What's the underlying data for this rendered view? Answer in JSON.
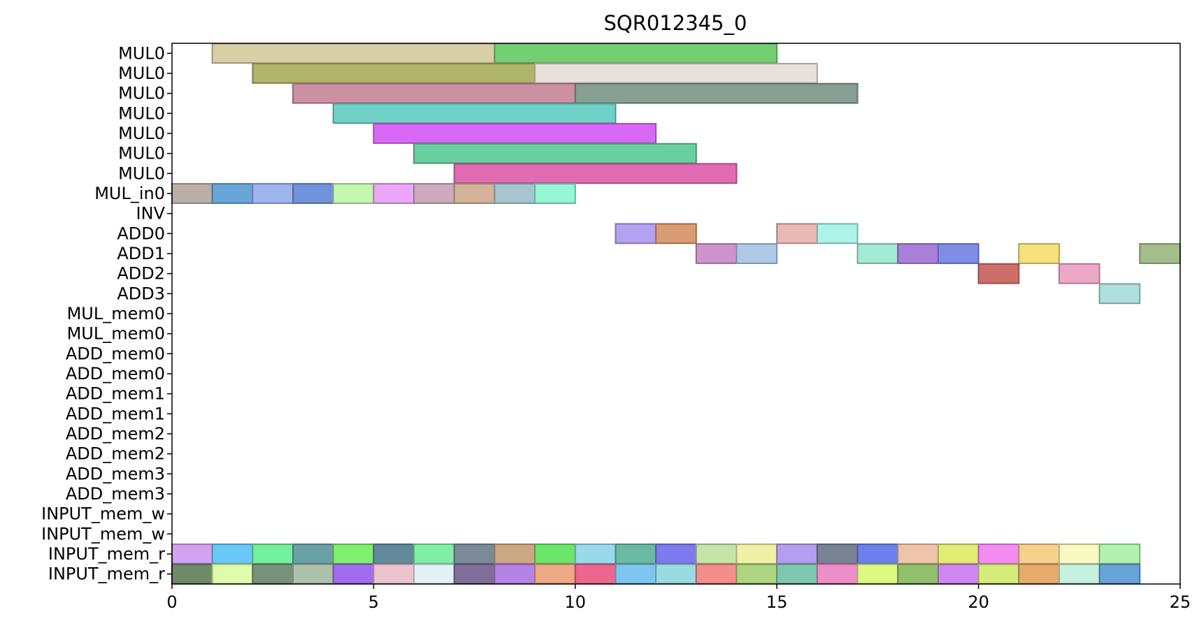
{
  "chart_data": {
    "type": "gantt",
    "title": "SQR012345_0",
    "xlabel": "",
    "ylabel": "",
    "xlim": [
      0,
      25
    ],
    "xticks": [
      0,
      5,
      10,
      15,
      20,
      25
    ],
    "grid": false,
    "rows": [
      "MUL0",
      "MUL0",
      "MUL0",
      "MUL0",
      "MUL0",
      "MUL0",
      "MUL0",
      "MUL_in0",
      "INV",
      "ADD0",
      "ADD1",
      "ADD2",
      "ADD3",
      "MUL_mem0",
      "MUL_mem0",
      "ADD_mem0",
      "ADD_mem0",
      "ADD_mem1",
      "ADD_mem1",
      "ADD_mem2",
      "ADD_mem2",
      "ADD_mem3",
      "ADD_mem3",
      "INPUT_mem_w",
      "INPUT_mem_w",
      "INPUT_mem_r",
      "INPUT_mem_r"
    ],
    "tasks": [
      {
        "row": 0,
        "start": 1,
        "end": 8,
        "color": "#d8cfa6"
      },
      {
        "row": 0,
        "start": 8,
        "end": 15,
        "color": "#72d072"
      },
      {
        "row": 1,
        "start": 2,
        "end": 9,
        "color": "#b0b56b"
      },
      {
        "row": 1,
        "start": 9,
        "end": 16,
        "color": "#e9dfdb"
      },
      {
        "row": 2,
        "start": 3,
        "end": 10,
        "color": "#cc90a2"
      },
      {
        "row": 2,
        "start": 10,
        "end": 17,
        "color": "#869f92"
      },
      {
        "row": 3,
        "start": 4,
        "end": 11,
        "color": "#72d1c6"
      },
      {
        "row": 4,
        "start": 5,
        "end": 12,
        "color": "#da68f7"
      },
      {
        "row": 5,
        "start": 6,
        "end": 13,
        "color": "#68d1a0"
      },
      {
        "row": 6,
        "start": 7,
        "end": 14,
        "color": "#e06bb2"
      },
      {
        "row": 7,
        "start": 0,
        "end": 1,
        "color": "#bbaea7"
      },
      {
        "row": 7,
        "start": 1,
        "end": 2,
        "color": "#66a7d8"
      },
      {
        "row": 7,
        "start": 2,
        "end": 3,
        "color": "#9fb3ee"
      },
      {
        "row": 7,
        "start": 3,
        "end": 4,
        "color": "#7092dc"
      },
      {
        "row": 7,
        "start": 4,
        "end": 5,
        "color": "#c3f7b0"
      },
      {
        "row": 7,
        "start": 5,
        "end": 6,
        "color": "#eba6f7"
      },
      {
        "row": 7,
        "start": 6,
        "end": 7,
        "color": "#ccabbd"
      },
      {
        "row": 7,
        "start": 7,
        "end": 8,
        "color": "#d4b39a"
      },
      {
        "row": 7,
        "start": 8,
        "end": 9,
        "color": "#a6c6cf"
      },
      {
        "row": 7,
        "start": 9,
        "end": 10,
        "color": "#94f7d6"
      },
      {
        "row": 9,
        "start": 11,
        "end": 12,
        "color": "#b5a1f1"
      },
      {
        "row": 9,
        "start": 12,
        "end": 13,
        "color": "#d99c73"
      },
      {
        "row": 9,
        "start": 15,
        "end": 16,
        "color": "#eab9b6"
      },
      {
        "row": 9,
        "start": 16,
        "end": 17,
        "color": "#acf4ea"
      },
      {
        "row": 10,
        "start": 13,
        "end": 14,
        "color": "#cf93cb"
      },
      {
        "row": 10,
        "start": 14,
        "end": 15,
        "color": "#afc9e9"
      },
      {
        "row": 10,
        "start": 17,
        "end": 18,
        "color": "#a3ebd5"
      },
      {
        "row": 10,
        "start": 18,
        "end": 19,
        "color": "#a87fd9"
      },
      {
        "row": 10,
        "start": 19,
        "end": 20,
        "color": "#7f8de5"
      },
      {
        "row": 10,
        "start": 21,
        "end": 22,
        "color": "#f6e27b"
      },
      {
        "row": 10,
        "start": 24,
        "end": 25,
        "color": "#a3be8c"
      },
      {
        "row": 11,
        "start": 20,
        "end": 21,
        "color": "#cc6f6a"
      },
      {
        "row": 11,
        "start": 22,
        "end": 23,
        "color": "#eea8c7"
      },
      {
        "row": 12,
        "start": 23,
        "end": 24,
        "color": "#ade0df"
      },
      {
        "row": 25,
        "start": 0,
        "end": 1,
        "color": "#d3a2f0"
      },
      {
        "row": 25,
        "start": 1,
        "end": 2,
        "color": "#68c8f7"
      },
      {
        "row": 25,
        "start": 2,
        "end": 3,
        "color": "#72f09b"
      },
      {
        "row": 25,
        "start": 3,
        "end": 4,
        "color": "#6aa1a9"
      },
      {
        "row": 25,
        "start": 4,
        "end": 5,
        "color": "#7df06e"
      },
      {
        "row": 25,
        "start": 5,
        "end": 6,
        "color": "#638a9c"
      },
      {
        "row": 25,
        "start": 6,
        "end": 7,
        "color": "#80f0a5"
      },
      {
        "row": 25,
        "start": 7,
        "end": 8,
        "color": "#7a8a98"
      },
      {
        "row": 25,
        "start": 8,
        "end": 9,
        "color": "#cda683"
      },
      {
        "row": 25,
        "start": 9,
        "end": 10,
        "color": "#6ae66a"
      },
      {
        "row": 25,
        "start": 10,
        "end": 11,
        "color": "#99d8ed"
      },
      {
        "row": 25,
        "start": 11,
        "end": 12,
        "color": "#6ab9a3"
      },
      {
        "row": 25,
        "start": 12,
        "end": 13,
        "color": "#7d7af0"
      },
      {
        "row": 25,
        "start": 13,
        "end": 14,
        "color": "#c6e3a8"
      },
      {
        "row": 25,
        "start": 14,
        "end": 15,
        "color": "#f1f0a8"
      },
      {
        "row": 25,
        "start": 15,
        "end": 16,
        "color": "#b59ef1"
      },
      {
        "row": 25,
        "start": 16,
        "end": 17,
        "color": "#7a8296"
      },
      {
        "row": 25,
        "start": 17,
        "end": 18,
        "color": "#6b80ec"
      },
      {
        "row": 25,
        "start": 18,
        "end": 19,
        "color": "#f0c4a8"
      },
      {
        "row": 25,
        "start": 19,
        "end": 20,
        "color": "#e2ec72"
      },
      {
        "row": 25,
        "start": 20,
        "end": 21,
        "color": "#f48af2"
      },
      {
        "row": 25,
        "start": 21,
        "end": 22,
        "color": "#f6d18c"
      },
      {
        "row": 25,
        "start": 22,
        "end": 23,
        "color": "#f8f9c0"
      },
      {
        "row": 25,
        "start": 23,
        "end": 24,
        "color": "#b1f3ae"
      },
      {
        "row": 26,
        "start": 0,
        "end": 1,
        "color": "#6e8a68"
      },
      {
        "row": 26,
        "start": 1,
        "end": 2,
        "color": "#e0fbab"
      },
      {
        "row": 26,
        "start": 2,
        "end": 3,
        "color": "#789279"
      },
      {
        "row": 26,
        "start": 3,
        "end": 4,
        "color": "#acc2ab"
      },
      {
        "row": 26,
        "start": 4,
        "end": 5,
        "color": "#a36cef"
      },
      {
        "row": 26,
        "start": 5,
        "end": 6,
        "color": "#ebc4cf"
      },
      {
        "row": 26,
        "start": 6,
        "end": 7,
        "color": "#e1f1f7"
      },
      {
        "row": 26,
        "start": 7,
        "end": 8,
        "color": "#806e9b"
      },
      {
        "row": 26,
        "start": 8,
        "end": 9,
        "color": "#b582e6"
      },
      {
        "row": 26,
        "start": 9,
        "end": 10,
        "color": "#eea985"
      },
      {
        "row": 26,
        "start": 10,
        "end": 11,
        "color": "#ec6690"
      },
      {
        "row": 26,
        "start": 11,
        "end": 12,
        "color": "#7ec6ef"
      },
      {
        "row": 26,
        "start": 12,
        "end": 13,
        "color": "#99dbe0"
      },
      {
        "row": 26,
        "start": 13,
        "end": 14,
        "color": "#f38e8b"
      },
      {
        "row": 26,
        "start": 14,
        "end": 15,
        "color": "#aed57f"
      },
      {
        "row": 26,
        "start": 15,
        "end": 16,
        "color": "#7ec8b0"
      },
      {
        "row": 26,
        "start": 16,
        "end": 17,
        "color": "#ee8ec8"
      },
      {
        "row": 26,
        "start": 17,
        "end": 18,
        "color": "#dcf980"
      },
      {
        "row": 26,
        "start": 18,
        "end": 19,
        "color": "#92c06d"
      },
      {
        "row": 26,
        "start": 19,
        "end": 20,
        "color": "#cf88ef"
      },
      {
        "row": 26,
        "start": 20,
        "end": 21,
        "color": "#d5ec7a"
      },
      {
        "row": 26,
        "start": 21,
        "end": 22,
        "color": "#e7ac6c"
      },
      {
        "row": 26,
        "start": 22,
        "end": 23,
        "color": "#c6f1de"
      },
      {
        "row": 26,
        "start": 23,
        "end": 24,
        "color": "#67a4d8"
      }
    ]
  }
}
